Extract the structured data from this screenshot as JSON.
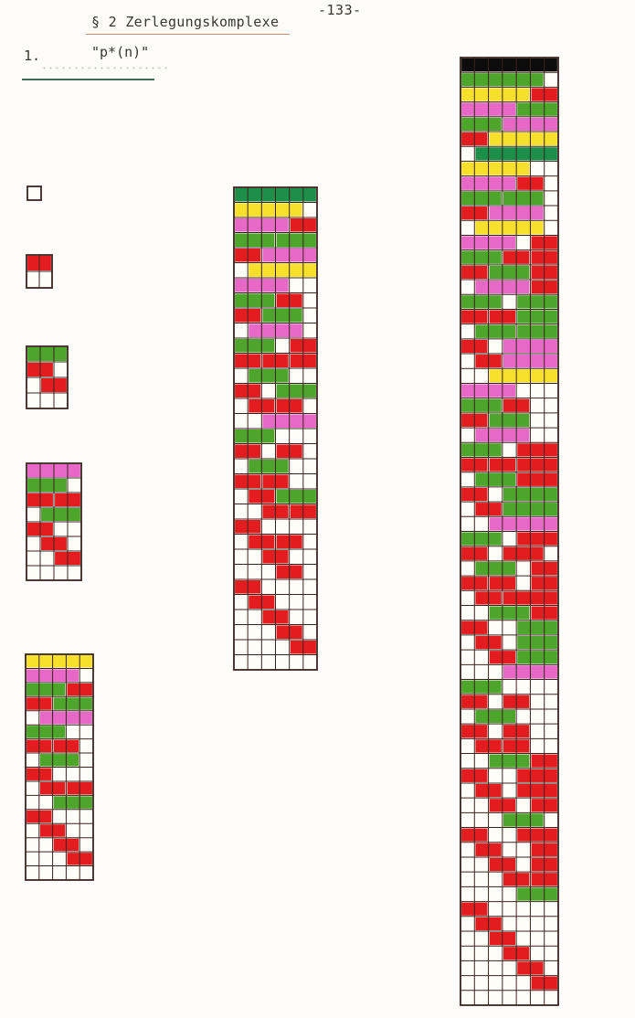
{
  "page_number": "-133-",
  "section_title": "§ 2 Zerlegungskomplexe",
  "item_number": "1.",
  "item_label": "\"p*(n)\"",
  "colors": {
    "empty": "#fffdf7",
    "grid_line": "#3a2420",
    "red": "#e31c1f",
    "green": "#4da52b",
    "magenta": "#e768c6",
    "yellow": "#f7e02c",
    "dark_green": "#1d8f4a",
    "black": "#0c0c0c"
  },
  "diagrams": [
    {
      "name": "n1",
      "cols": 1,
      "rows": 1,
      "pieces": []
    },
    {
      "name": "n2",
      "cols": 2,
      "rows": 2,
      "pieces": [
        [
          0,
          0,
          2,
          "red"
        ]
      ]
    },
    {
      "name": "n3",
      "cols": 3,
      "rows": 4,
      "pieces": [
        [
          0,
          0,
          3,
          "green"
        ],
        [
          1,
          0,
          2,
          "red"
        ],
        [
          2,
          1,
          2,
          "red"
        ]
      ]
    },
    {
      "name": "n4",
      "cols": 4,
      "rows": 8,
      "pieces": [
        [
          0,
          0,
          4,
          "magenta"
        ],
        [
          1,
          0,
          3,
          "green"
        ],
        [
          2,
          0,
          2,
          "red"
        ],
        [
          2,
          2,
          2,
          "red"
        ],
        [
          3,
          1,
          3,
          "green"
        ],
        [
          4,
          0,
          2,
          "red"
        ],
        [
          5,
          1,
          2,
          "red"
        ],
        [
          6,
          2,
          2,
          "red"
        ]
      ]
    },
    {
      "name": "n5",
      "cols": 5,
      "rows": 16,
      "pieces": [
        [
          0,
          0,
          5,
          "yellow"
        ],
        [
          1,
          0,
          4,
          "magenta"
        ],
        [
          2,
          0,
          3,
          "green"
        ],
        [
          2,
          3,
          2,
          "red"
        ],
        [
          3,
          0,
          2,
          "red"
        ],
        [
          3,
          2,
          3,
          "green"
        ],
        [
          4,
          1,
          4,
          "magenta"
        ],
        [
          5,
          0,
          3,
          "green"
        ],
        [
          6,
          0,
          2,
          "red"
        ],
        [
          6,
          2,
          2,
          "red"
        ],
        [
          7,
          1,
          3,
          "green"
        ],
        [
          8,
          0,
          2,
          "red"
        ],
        [
          9,
          1,
          2,
          "red"
        ],
        [
          9,
          3,
          2,
          "red"
        ],
        [
          10,
          2,
          3,
          "green"
        ],
        [
          11,
          0,
          2,
          "red"
        ],
        [
          12,
          1,
          2,
          "red"
        ],
        [
          13,
          2,
          2,
          "red"
        ],
        [
          14,
          3,
          2,
          "red"
        ]
      ]
    },
    {
      "name": "n6",
      "cols": 6,
      "rows": 32,
      "pieces": [
        [
          0,
          0,
          6,
          "dark_green"
        ],
        [
          1,
          0,
          5,
          "yellow"
        ],
        [
          2,
          0,
          4,
          "magenta"
        ],
        [
          2,
          4,
          2,
          "red"
        ],
        [
          3,
          0,
          3,
          "green"
        ],
        [
          3,
          3,
          3,
          "green"
        ],
        [
          4,
          0,
          2,
          "red"
        ],
        [
          4,
          2,
          4,
          "magenta"
        ],
        [
          5,
          1,
          5,
          "yellow"
        ],
        [
          6,
          0,
          4,
          "magenta"
        ],
        [
          7,
          0,
          3,
          "green"
        ],
        [
          7,
          3,
          2,
          "red"
        ],
        [
          8,
          0,
          2,
          "red"
        ],
        [
          8,
          2,
          3,
          "green"
        ],
        [
          9,
          1,
          4,
          "magenta"
        ],
        [
          10,
          0,
          3,
          "green"
        ],
        [
          10,
          4,
          2,
          "red"
        ],
        [
          11,
          0,
          2,
          "red"
        ],
        [
          11,
          2,
          2,
          "red"
        ],
        [
          11,
          4,
          2,
          "red"
        ],
        [
          12,
          1,
          3,
          "green"
        ],
        [
          13,
          0,
          2,
          "red"
        ],
        [
          13,
          3,
          3,
          "green"
        ],
        [
          14,
          1,
          2,
          "red"
        ],
        [
          14,
          3,
          2,
          "red"
        ],
        [
          15,
          2,
          4,
          "magenta"
        ],
        [
          16,
          0,
          3,
          "green"
        ],
        [
          17,
          0,
          2,
          "red"
        ],
        [
          17,
          3,
          2,
          "red"
        ],
        [
          18,
          1,
          3,
          "green"
        ],
        [
          19,
          0,
          2,
          "red"
        ],
        [
          19,
          2,
          2,
          "red"
        ],
        [
          20,
          1,
          2,
          "red"
        ],
        [
          20,
          3,
          3,
          "green"
        ],
        [
          21,
          2,
          2,
          "red"
        ],
        [
          21,
          4,
          2,
          "red"
        ],
        [
          22,
          0,
          2,
          "red"
        ],
        [
          23,
          1,
          2,
          "red"
        ],
        [
          23,
          3,
          2,
          "red"
        ],
        [
          24,
          2,
          2,
          "red"
        ],
        [
          25,
          3,
          2,
          "red"
        ],
        [
          26,
          0,
          2,
          "red"
        ],
        [
          27,
          1,
          2,
          "red"
        ],
        [
          28,
          2,
          2,
          "red"
        ],
        [
          29,
          3,
          2,
          "red"
        ],
        [
          30,
          4,
          2,
          "red"
        ]
      ]
    },
    {
      "name": "n7",
      "cols": 7,
      "rows": 64,
      "pieces": [
        [
          0,
          0,
          7,
          "black"
        ],
        [
          1,
          0,
          6,
          "green"
        ],
        [
          2,
          0,
          5,
          "yellow"
        ],
        [
          2,
          5,
          2,
          "red"
        ],
        [
          3,
          0,
          4,
          "magenta"
        ],
        [
          3,
          4,
          3,
          "green"
        ],
        [
          4,
          0,
          3,
          "green"
        ],
        [
          4,
          3,
          4,
          "magenta"
        ],
        [
          5,
          0,
          2,
          "red"
        ],
        [
          5,
          2,
          5,
          "yellow"
        ],
        [
          6,
          1,
          6,
          "dark_green"
        ],
        [
          7,
          0,
          5,
          "yellow"
        ],
        [
          8,
          0,
          4,
          "magenta"
        ],
        [
          8,
          4,
          2,
          "red"
        ],
        [
          9,
          0,
          3,
          "green"
        ],
        [
          9,
          3,
          3,
          "green"
        ],
        [
          10,
          0,
          2,
          "red"
        ],
        [
          10,
          2,
          4,
          "magenta"
        ],
        [
          11,
          1,
          5,
          "yellow"
        ],
        [
          12,
          0,
          4,
          "magenta"
        ],
        [
          12,
          5,
          2,
          "red"
        ],
        [
          13,
          0,
          3,
          "green"
        ],
        [
          13,
          3,
          2,
          "red"
        ],
        [
          13,
          5,
          2,
          "red"
        ],
        [
          14,
          0,
          2,
          "red"
        ],
        [
          14,
          2,
          3,
          "green"
        ],
        [
          14,
          5,
          2,
          "red"
        ],
        [
          15,
          1,
          4,
          "magenta"
        ],
        [
          15,
          5,
          2,
          "red"
        ],
        [
          16,
          0,
          3,
          "green"
        ],
        [
          16,
          4,
          3,
          "green"
        ],
        [
          17,
          0,
          2,
          "red"
        ],
        [
          17,
          2,
          2,
          "red"
        ],
        [
          17,
          4,
          3,
          "green"
        ],
        [
          18,
          1,
          3,
          "green"
        ],
        [
          18,
          4,
          3,
          "green"
        ],
        [
          19,
          0,
          2,
          "red"
        ],
        [
          19,
          3,
          4,
          "magenta"
        ],
        [
          20,
          1,
          2,
          "red"
        ],
        [
          20,
          3,
          4,
          "magenta"
        ],
        [
          21,
          2,
          5,
          "yellow"
        ],
        [
          22,
          0,
          4,
          "magenta"
        ],
        [
          23,
          0,
          3,
          "green"
        ],
        [
          23,
          3,
          2,
          "red"
        ],
        [
          24,
          0,
          2,
          "red"
        ],
        [
          24,
          2,
          3,
          "green"
        ],
        [
          25,
          1,
          4,
          "magenta"
        ],
        [
          26,
          0,
          3,
          "green"
        ],
        [
          26,
          4,
          3,
          "red"
        ],
        [
          27,
          0,
          2,
          "red"
        ],
        [
          27,
          2,
          2,
          "red"
        ],
        [
          27,
          4,
          3,
          "red"
        ],
        [
          28,
          1,
          3,
          "green"
        ],
        [
          28,
          4,
          3,
          "red"
        ],
        [
          29,
          0,
          2,
          "red"
        ],
        [
          29,
          3,
          4,
          "green"
        ],
        [
          30,
          1,
          2,
          "red"
        ],
        [
          30,
          3,
          4,
          "green"
        ],
        [
          31,
          2,
          5,
          "magenta"
        ],
        [
          32,
          0,
          3,
          "green"
        ],
        [
          32,
          4,
          3,
          "red"
        ],
        [
          33,
          0,
          2,
          "red"
        ],
        [
          33,
          3,
          3,
          "red"
        ],
        [
          34,
          1,
          3,
          "green"
        ],
        [
          34,
          5,
          2,
          "red"
        ],
        [
          35,
          0,
          2,
          "red"
        ],
        [
          35,
          2,
          2,
          "red"
        ],
        [
          35,
          5,
          2,
          "red"
        ],
        [
          36,
          1,
          2,
          "red"
        ],
        [
          36,
          3,
          4,
          "red"
        ],
        [
          37,
          2,
          3,
          "green"
        ],
        [
          37,
          5,
          2,
          "red"
        ],
        [
          38,
          0,
          2,
          "red"
        ],
        [
          38,
          4,
          3,
          "green"
        ],
        [
          39,
          1,
          2,
          "red"
        ],
        [
          39,
          4,
          3,
          "green"
        ],
        [
          40,
          2,
          2,
          "red"
        ],
        [
          40,
          4,
          3,
          "green"
        ],
        [
          41,
          3,
          4,
          "magenta"
        ],
        [
          42,
          0,
          3,
          "green"
        ],
        [
          43,
          0,
          2,
          "red"
        ],
        [
          43,
          3,
          2,
          "red"
        ],
        [
          44,
          1,
          3,
          "green"
        ],
        [
          45,
          0,
          2,
          "red"
        ],
        [
          45,
          3,
          2,
          "red"
        ],
        [
          46,
          1,
          2,
          "red"
        ],
        [
          46,
          3,
          2,
          "red"
        ],
        [
          47,
          2,
          3,
          "green"
        ],
        [
          47,
          5,
          2,
          "red"
        ],
        [
          48,
          0,
          2,
          "red"
        ],
        [
          48,
          4,
          3,
          "red"
        ],
        [
          49,
          1,
          2,
          "red"
        ],
        [
          49,
          4,
          3,
          "red"
        ],
        [
          50,
          2,
          2,
          "red"
        ],
        [
          50,
          5,
          2,
          "red"
        ],
        [
          51,
          3,
          3,
          "green"
        ],
        [
          52,
          0,
          2,
          "red"
        ],
        [
          52,
          4,
          3,
          "red"
        ],
        [
          53,
          1,
          2,
          "red"
        ],
        [
          53,
          5,
          2,
          "red"
        ],
        [
          54,
          2,
          2,
          "red"
        ],
        [
          54,
          5,
          2,
          "red"
        ],
        [
          55,
          3,
          2,
          "red"
        ],
        [
          55,
          5,
          2,
          "red"
        ],
        [
          56,
          4,
          3,
          "green"
        ],
        [
          57,
          0,
          2,
          "red"
        ],
        [
          58,
          1,
          2,
          "red"
        ],
        [
          59,
          2,
          2,
          "red"
        ],
        [
          60,
          3,
          2,
          "red"
        ],
        [
          61,
          4,
          2,
          "red"
        ],
        [
          62,
          5,
          2,
          "red"
        ]
      ]
    }
  ]
}
